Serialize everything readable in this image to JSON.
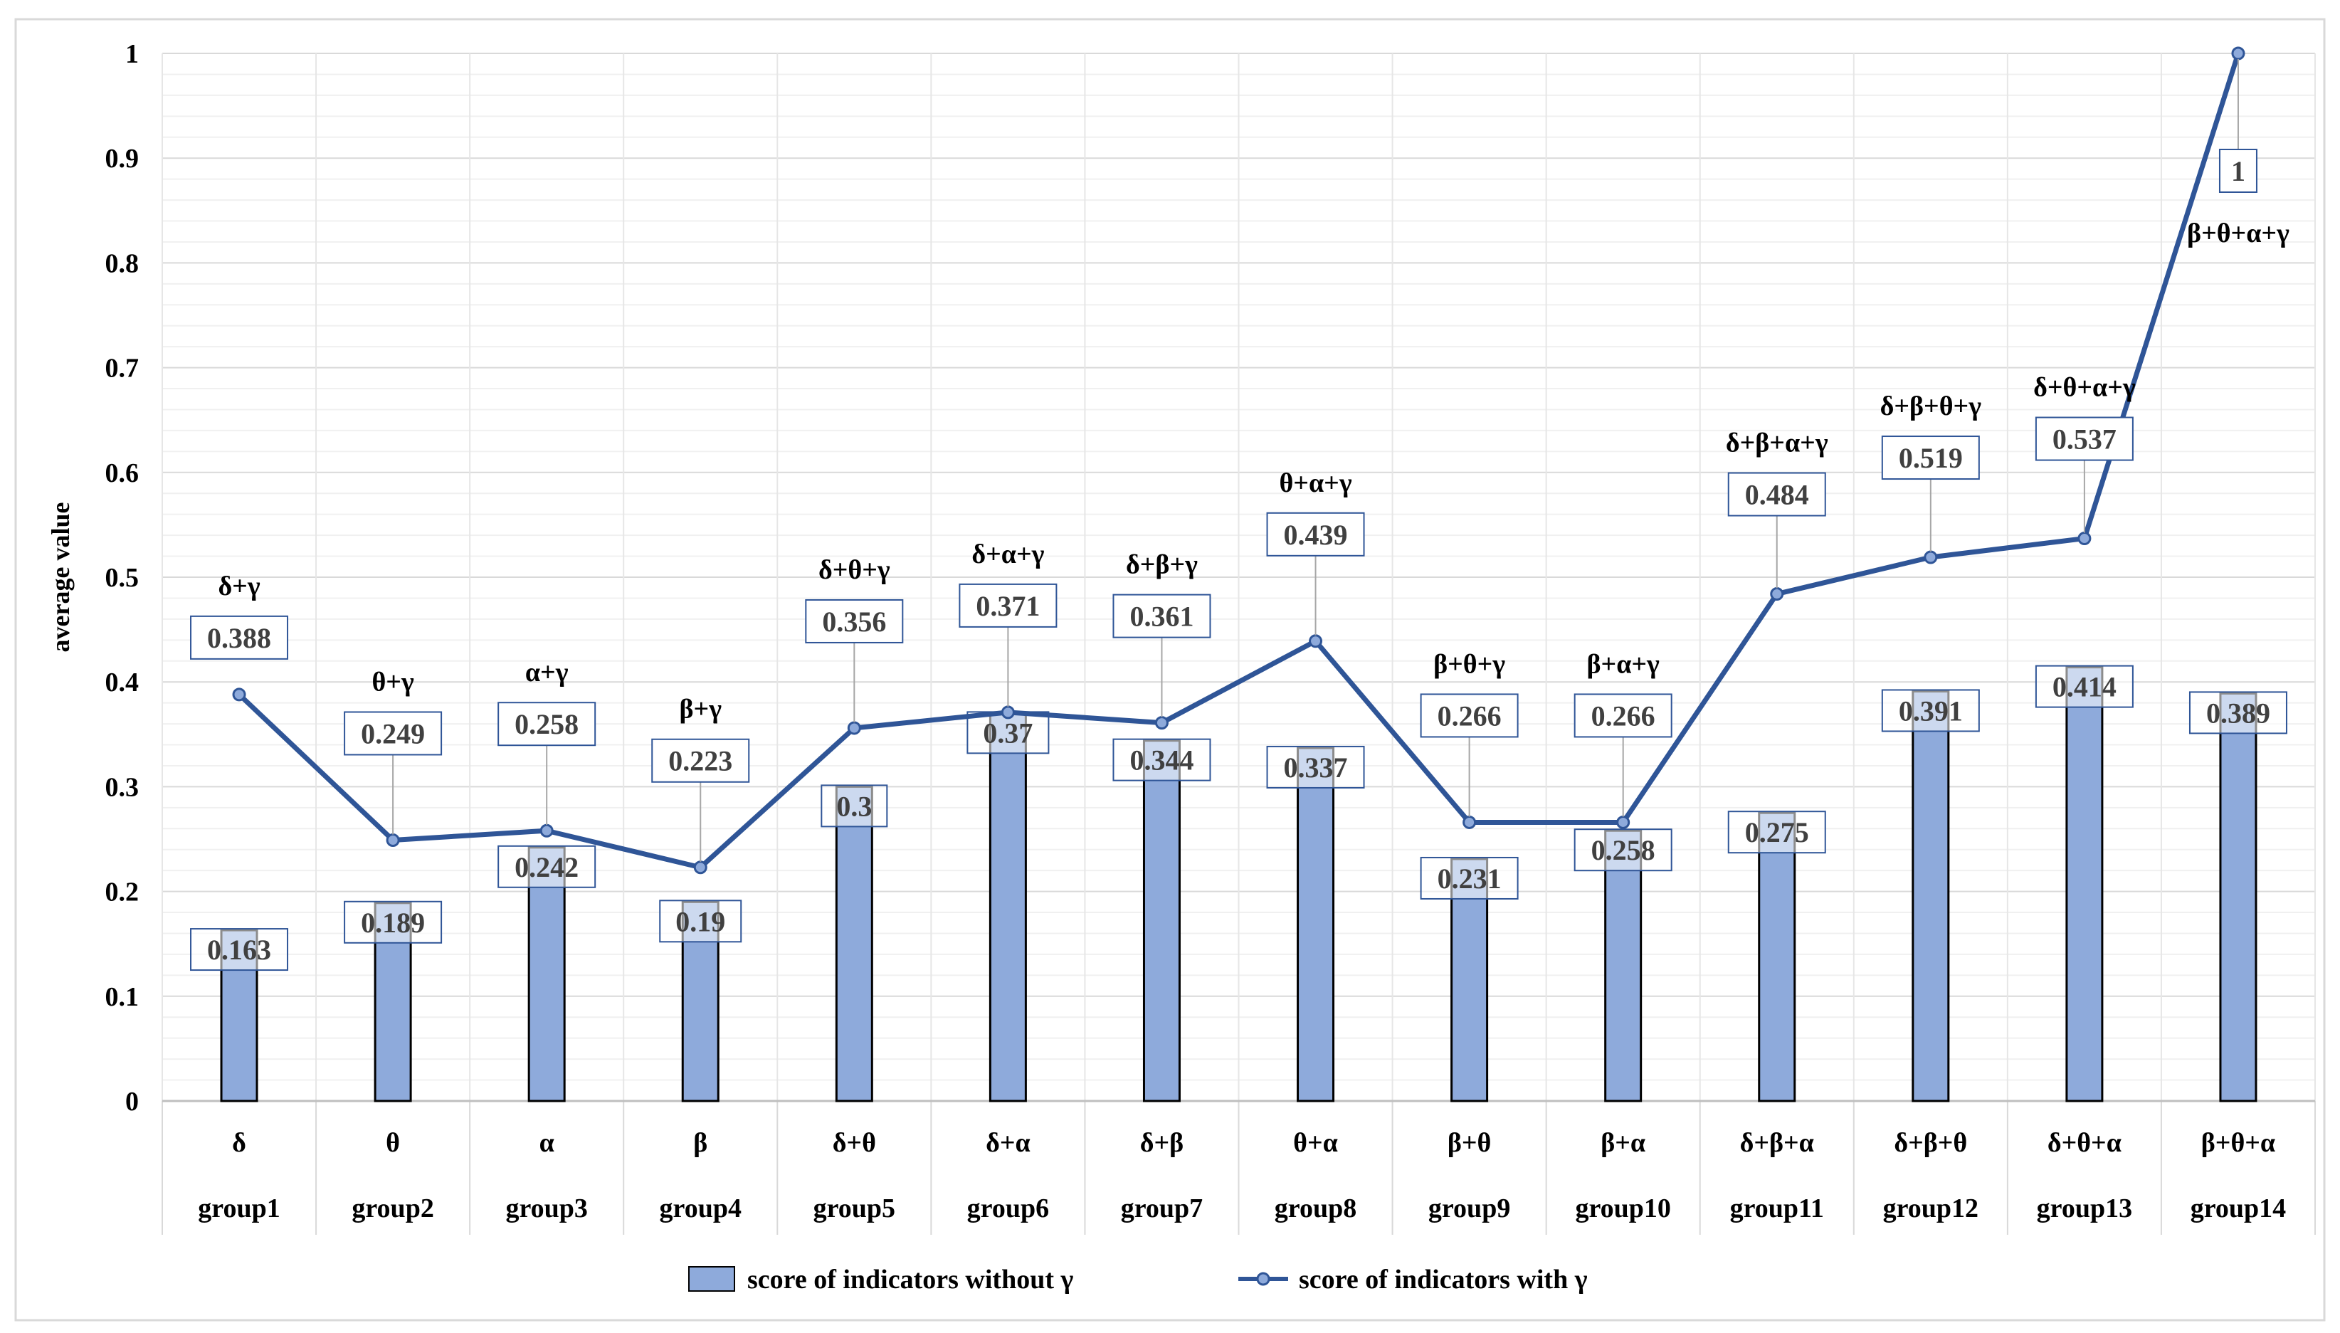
{
  "chart_data": {
    "type": "bar",
    "ylabel": "average value",
    "xlabel": "",
    "ylim": [
      0,
      1
    ],
    "yticks": [
      "0",
      "0.1",
      "0.2",
      "0.3",
      "0.4",
      "0.5",
      "0.6",
      "0.7",
      "0.8",
      "0.9",
      "1"
    ],
    "grid": true,
    "legend_position": "bottom",
    "categories": [
      "group1",
      "group2",
      "group3",
      "group4",
      "group5",
      "group6",
      "group7",
      "group8",
      "group9",
      "group10",
      "group11",
      "group12",
      "group13",
      "group14"
    ],
    "bands": [
      "δ",
      "θ",
      "α",
      "β",
      "δ+θ",
      "δ+α",
      "δ+β",
      "θ+α",
      "β+θ",
      "β+α",
      "δ+β+α",
      "δ+β+θ",
      "δ+θ+α",
      "β+θ+α"
    ],
    "series": [
      {
        "name": "score of indicators without γ",
        "kind": "bar",
        "color": "#8eaadb",
        "values": [
          0.163,
          0.189,
          0.242,
          0.19,
          0.3,
          0.37,
          0.344,
          0.337,
          0.231,
          0.258,
          0.275,
          0.391,
          0.414,
          0.389
        ],
        "labels": [
          "0.163",
          "0.189",
          "0.242",
          "0.19",
          "0.3",
          "0.37",
          "0.344",
          "0.337",
          "0.231",
          "0.258",
          "0.275",
          "0.391",
          "0.414",
          "0.389"
        ]
      },
      {
        "name": "score of indicators with γ",
        "kind": "line",
        "color": "#2f5597",
        "values": [
          0.388,
          0.249,
          0.258,
          0.223,
          0.356,
          0.371,
          0.361,
          0.439,
          0.266,
          0.266,
          0.484,
          0.519,
          0.537,
          1
        ],
        "labels": [
          "0.388",
          "0.249",
          "0.258",
          "0.223",
          "0.356",
          "0.371",
          "0.361",
          "0.439",
          "0.266",
          "0.266",
          "0.484",
          "0.519",
          "0.537",
          "1"
        ],
        "combos": [
          "δ+γ",
          "θ+γ",
          "α+γ",
          "β+γ",
          "δ+θ+γ",
          "δ+α+γ",
          "δ+β+γ",
          "θ+α+γ",
          "β+θ+γ",
          "β+α+γ",
          "δ+β+α+γ",
          "δ+β+θ+γ",
          "δ+θ+α+γ",
          "β+θ+α+γ"
        ]
      }
    ]
  }
}
